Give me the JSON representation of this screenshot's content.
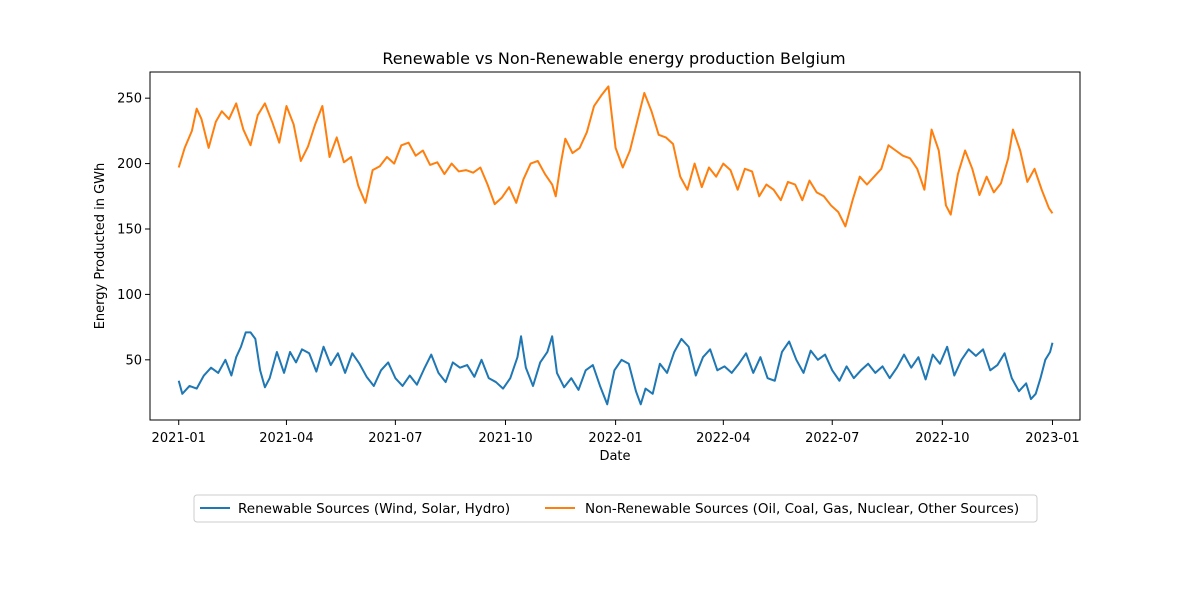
{
  "chart_data": {
    "type": "line",
    "title": "Renewable vs Non-Renewable energy production Belgium",
    "xlabel": "Date",
    "ylabel": "Energy Producted in GWh",
    "xlim": [
      "2020-12-08",
      "2023-01-24"
    ],
    "ylim": [
      4,
      270
    ],
    "x_ticks": [
      "2021-01",
      "2021-04",
      "2021-07",
      "2021-10",
      "2022-01",
      "2022-04",
      "2022-07",
      "2022-10",
      "2023-01"
    ],
    "y_ticks": [
      50,
      100,
      150,
      200,
      250
    ],
    "grid": false,
    "legend_placement": "below plot, centered",
    "series": [
      {
        "name": "Renewable Sources (Wind, Solar, Hydro)",
        "color": "#1f77b4",
        "points": [
          [
            "2021-01-01",
            34
          ],
          [
            "2021-01-04",
            24
          ],
          [
            "2021-01-10",
            30
          ],
          [
            "2021-01-16",
            28
          ],
          [
            "2021-01-22",
            38
          ],
          [
            "2021-01-28",
            44
          ],
          [
            "2021-02-03",
            40
          ],
          [
            "2021-02-09",
            50
          ],
          [
            "2021-02-14",
            38
          ],
          [
            "2021-02-18",
            52
          ],
          [
            "2021-02-22",
            60
          ],
          [
            "2021-02-26",
            71
          ],
          [
            "2021-03-02",
            71
          ],
          [
            "2021-03-06",
            66
          ],
          [
            "2021-03-10",
            42
          ],
          [
            "2021-03-14",
            29
          ],
          [
            "2021-03-18",
            36
          ],
          [
            "2021-03-24",
            56
          ],
          [
            "2021-03-30",
            40
          ],
          [
            "2021-04-04",
            56
          ],
          [
            "2021-04-09",
            48
          ],
          [
            "2021-04-14",
            58
          ],
          [
            "2021-04-20",
            55
          ],
          [
            "2021-04-26",
            41
          ],
          [
            "2021-05-02",
            60
          ],
          [
            "2021-05-08",
            46
          ],
          [
            "2021-05-14",
            55
          ],
          [
            "2021-05-20",
            40
          ],
          [
            "2021-05-26",
            55
          ],
          [
            "2021-06-01",
            47
          ],
          [
            "2021-06-07",
            37
          ],
          [
            "2021-06-13",
            30
          ],
          [
            "2021-06-19",
            42
          ],
          [
            "2021-06-25",
            48
          ],
          [
            "2021-07-01",
            36
          ],
          [
            "2021-07-07",
            30
          ],
          [
            "2021-07-13",
            38
          ],
          [
            "2021-07-19",
            31
          ],
          [
            "2021-07-25",
            43
          ],
          [
            "2021-07-31",
            54
          ],
          [
            "2021-08-06",
            40
          ],
          [
            "2021-08-12",
            33
          ],
          [
            "2021-08-18",
            48
          ],
          [
            "2021-08-24",
            44
          ],
          [
            "2021-08-30",
            46
          ],
          [
            "2021-09-05",
            37
          ],
          [
            "2021-09-11",
            50
          ],
          [
            "2021-09-17",
            36
          ],
          [
            "2021-09-23",
            33
          ],
          [
            "2021-09-29",
            28
          ],
          [
            "2021-10-05",
            36
          ],
          [
            "2021-10-11",
            52
          ],
          [
            "2021-10-14",
            68
          ],
          [
            "2021-10-18",
            44
          ],
          [
            "2021-10-24",
            30
          ],
          [
            "2021-10-30",
            48
          ],
          [
            "2021-11-05",
            56
          ],
          [
            "2021-11-09",
            68
          ],
          [
            "2021-11-13",
            40
          ],
          [
            "2021-11-19",
            29
          ],
          [
            "2021-11-25",
            36
          ],
          [
            "2021-12-01",
            27
          ],
          [
            "2021-12-07",
            42
          ],
          [
            "2021-12-13",
            46
          ],
          [
            "2021-12-19",
            30
          ],
          [
            "2021-12-25",
            16
          ],
          [
            "2021-12-31",
            42
          ],
          [
            "2022-01-06",
            50
          ],
          [
            "2022-01-12",
            47
          ],
          [
            "2022-01-18",
            26
          ],
          [
            "2022-01-22",
            16
          ],
          [
            "2022-01-26",
            28
          ],
          [
            "2022-02-01",
            24
          ],
          [
            "2022-02-07",
            47
          ],
          [
            "2022-02-13",
            40
          ],
          [
            "2022-02-19",
            56
          ],
          [
            "2022-02-25",
            66
          ],
          [
            "2022-03-03",
            60
          ],
          [
            "2022-03-09",
            38
          ],
          [
            "2022-03-15",
            52
          ],
          [
            "2022-03-21",
            58
          ],
          [
            "2022-03-27",
            42
          ],
          [
            "2022-04-02",
            45
          ],
          [
            "2022-04-08",
            40
          ],
          [
            "2022-04-14",
            47
          ],
          [
            "2022-04-20",
            55
          ],
          [
            "2022-04-26",
            40
          ],
          [
            "2022-05-02",
            52
          ],
          [
            "2022-05-08",
            36
          ],
          [
            "2022-05-14",
            34
          ],
          [
            "2022-05-20",
            56
          ],
          [
            "2022-05-26",
            64
          ],
          [
            "2022-06-01",
            50
          ],
          [
            "2022-06-07",
            40
          ],
          [
            "2022-06-13",
            57
          ],
          [
            "2022-06-19",
            50
          ],
          [
            "2022-06-25",
            54
          ],
          [
            "2022-07-01",
            42
          ],
          [
            "2022-07-07",
            34
          ],
          [
            "2022-07-13",
            45
          ],
          [
            "2022-07-19",
            36
          ],
          [
            "2022-07-25",
            42
          ],
          [
            "2022-07-31",
            47
          ],
          [
            "2022-08-06",
            40
          ],
          [
            "2022-08-12",
            45
          ],
          [
            "2022-08-18",
            36
          ],
          [
            "2022-08-24",
            44
          ],
          [
            "2022-08-30",
            54
          ],
          [
            "2022-09-05",
            44
          ],
          [
            "2022-09-11",
            52
          ],
          [
            "2022-09-17",
            35
          ],
          [
            "2022-09-23",
            54
          ],
          [
            "2022-09-29",
            47
          ],
          [
            "2022-10-05",
            60
          ],
          [
            "2022-10-11",
            38
          ],
          [
            "2022-10-17",
            50
          ],
          [
            "2022-10-23",
            58
          ],
          [
            "2022-10-29",
            53
          ],
          [
            "2022-11-04",
            58
          ],
          [
            "2022-11-10",
            42
          ],
          [
            "2022-11-16",
            46
          ],
          [
            "2022-11-22",
            55
          ],
          [
            "2022-11-28",
            36
          ],
          [
            "2022-12-04",
            26
          ],
          [
            "2022-12-10",
            32
          ],
          [
            "2022-12-14",
            20
          ],
          [
            "2022-12-18",
            24
          ],
          [
            "2022-12-22",
            36
          ],
          [
            "2022-12-26",
            50
          ],
          [
            "2022-12-30",
            56
          ],
          [
            "2023-01-01",
            63
          ]
        ]
      },
      {
        "name": "Non-Renewable Sources (Oil, Coal, Gas, Nuclear, Other Sources)",
        "color": "#ff7f0e",
        "points": [
          [
            "2021-01-01",
            197
          ],
          [
            "2021-01-06",
            212
          ],
          [
            "2021-01-12",
            225
          ],
          [
            "2021-01-16",
            242
          ],
          [
            "2021-01-20",
            234
          ],
          [
            "2021-01-26",
            212
          ],
          [
            "2021-02-01",
            232
          ],
          [
            "2021-02-06",
            240
          ],
          [
            "2021-02-12",
            234
          ],
          [
            "2021-02-18",
            246
          ],
          [
            "2021-02-24",
            226
          ],
          [
            "2021-03-02",
            214
          ],
          [
            "2021-03-08",
            237
          ],
          [
            "2021-03-14",
            246
          ],
          [
            "2021-03-20",
            232
          ],
          [
            "2021-03-26",
            216
          ],
          [
            "2021-04-01",
            244
          ],
          [
            "2021-04-07",
            230
          ],
          [
            "2021-04-13",
            202
          ],
          [
            "2021-04-19",
            213
          ],
          [
            "2021-04-25",
            230
          ],
          [
            "2021-05-01",
            244
          ],
          [
            "2021-05-07",
            205
          ],
          [
            "2021-05-13",
            220
          ],
          [
            "2021-05-19",
            201
          ],
          [
            "2021-05-25",
            205
          ],
          [
            "2021-05-31",
            183
          ],
          [
            "2021-06-06",
            170
          ],
          [
            "2021-06-12",
            195
          ],
          [
            "2021-06-18",
            198
          ],
          [
            "2021-06-24",
            205
          ],
          [
            "2021-06-30",
            200
          ],
          [
            "2021-07-06",
            214
          ],
          [
            "2021-07-12",
            216
          ],
          [
            "2021-07-18",
            206
          ],
          [
            "2021-07-24",
            210
          ],
          [
            "2021-07-30",
            199
          ],
          [
            "2021-08-05",
            201
          ],
          [
            "2021-08-11",
            192
          ],
          [
            "2021-08-17",
            200
          ],
          [
            "2021-08-23",
            194
          ],
          [
            "2021-08-29",
            195
          ],
          [
            "2021-09-04",
            193
          ],
          [
            "2021-09-10",
            197
          ],
          [
            "2021-09-16",
            184
          ],
          [
            "2021-09-22",
            169
          ],
          [
            "2021-09-28",
            174
          ],
          [
            "2021-10-04",
            182
          ],
          [
            "2021-10-10",
            170
          ],
          [
            "2021-10-16",
            188
          ],
          [
            "2021-10-22",
            200
          ],
          [
            "2021-10-28",
            202
          ],
          [
            "2021-11-03",
            192
          ],
          [
            "2021-11-09",
            184
          ],
          [
            "2021-11-12",
            175
          ],
          [
            "2021-11-16",
            199
          ],
          [
            "2021-11-20",
            219
          ],
          [
            "2021-11-26",
            208
          ],
          [
            "2021-12-02",
            212
          ],
          [
            "2021-12-08",
            224
          ],
          [
            "2021-12-14",
            244
          ],
          [
            "2021-12-20",
            252
          ],
          [
            "2021-12-26",
            259
          ],
          [
            "2022-01-01",
            212
          ],
          [
            "2022-01-07",
            197
          ],
          [
            "2022-01-13",
            210
          ],
          [
            "2022-01-19",
            232
          ],
          [
            "2022-01-25",
            254
          ],
          [
            "2022-01-31",
            240
          ],
          [
            "2022-02-06",
            222
          ],
          [
            "2022-02-12",
            220
          ],
          [
            "2022-02-18",
            215
          ],
          [
            "2022-02-24",
            190
          ],
          [
            "2022-03-02",
            180
          ],
          [
            "2022-03-08",
            200
          ],
          [
            "2022-03-14",
            182
          ],
          [
            "2022-03-20",
            197
          ],
          [
            "2022-03-26",
            190
          ],
          [
            "2022-04-01",
            200
          ],
          [
            "2022-04-07",
            195
          ],
          [
            "2022-04-13",
            180
          ],
          [
            "2022-04-19",
            196
          ],
          [
            "2022-04-25",
            194
          ],
          [
            "2022-05-01",
            175
          ],
          [
            "2022-05-07",
            184
          ],
          [
            "2022-05-13",
            180
          ],
          [
            "2022-05-19",
            172
          ],
          [
            "2022-05-25",
            186
          ],
          [
            "2022-05-31",
            184
          ],
          [
            "2022-06-06",
            172
          ],
          [
            "2022-06-12",
            187
          ],
          [
            "2022-06-18",
            178
          ],
          [
            "2022-06-24",
            175
          ],
          [
            "2022-06-30",
            168
          ],
          [
            "2022-07-06",
            163
          ],
          [
            "2022-07-12",
            152
          ],
          [
            "2022-07-18",
            172
          ],
          [
            "2022-07-24",
            190
          ],
          [
            "2022-07-30",
            184
          ],
          [
            "2022-08-05",
            190
          ],
          [
            "2022-08-11",
            196
          ],
          [
            "2022-08-17",
            214
          ],
          [
            "2022-08-23",
            210
          ],
          [
            "2022-08-29",
            206
          ],
          [
            "2022-09-04",
            204
          ],
          [
            "2022-09-10",
            196
          ],
          [
            "2022-09-16",
            180
          ],
          [
            "2022-09-22",
            226
          ],
          [
            "2022-09-28",
            210
          ],
          [
            "2022-10-04",
            168
          ],
          [
            "2022-10-08",
            161
          ],
          [
            "2022-10-14",
            192
          ],
          [
            "2022-10-20",
            210
          ],
          [
            "2022-10-26",
            196
          ],
          [
            "2022-11-01",
            176
          ],
          [
            "2022-11-07",
            190
          ],
          [
            "2022-11-13",
            178
          ],
          [
            "2022-11-19",
            185
          ],
          [
            "2022-11-25",
            204
          ],
          [
            "2022-11-29",
            226
          ],
          [
            "2022-12-05",
            210
          ],
          [
            "2022-12-11",
            186
          ],
          [
            "2022-12-17",
            196
          ],
          [
            "2022-12-23",
            180
          ],
          [
            "2022-12-29",
            166
          ],
          [
            "2023-01-01",
            162
          ]
        ]
      }
    ]
  }
}
